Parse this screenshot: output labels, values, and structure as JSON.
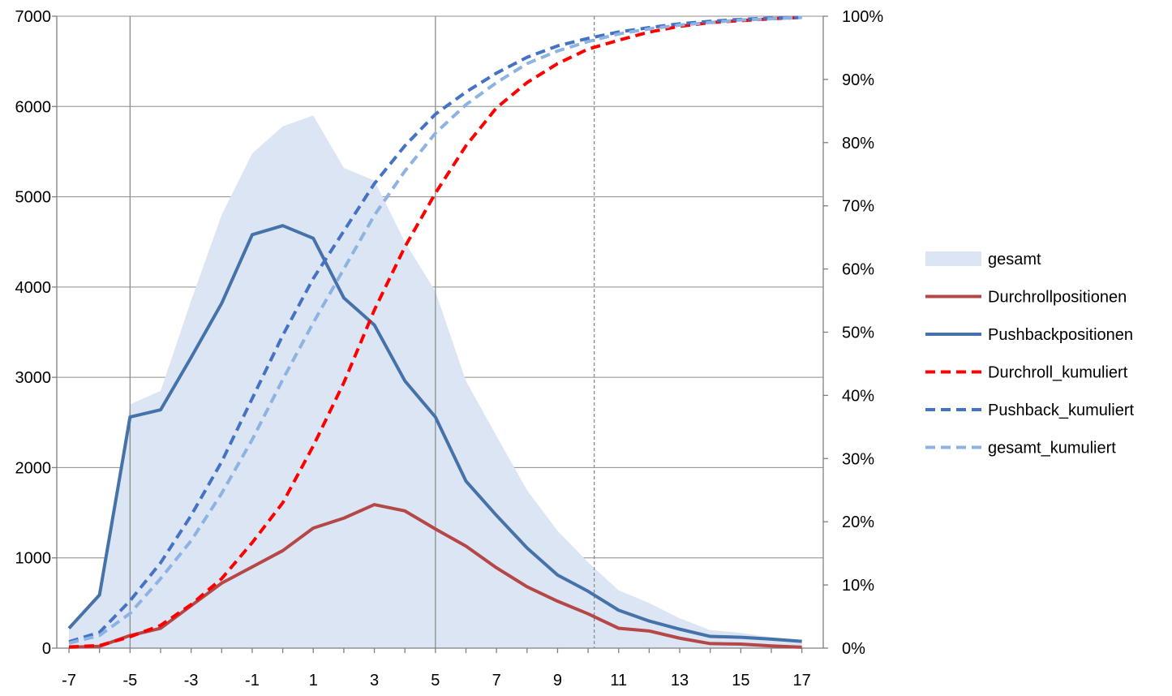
{
  "chart_data": {
    "type": "line",
    "x": [
      -7,
      -6,
      -5,
      -4,
      -3,
      -2,
      -1,
      0,
      1,
      2,
      3,
      4,
      5,
      6,
      7,
      8,
      9,
      10,
      11,
      12,
      13,
      14,
      15,
      16,
      17
    ],
    "x_ticks": [
      -7,
      -5,
      -3,
      -1,
      1,
      3,
      5,
      7,
      9,
      11,
      13,
      15,
      17
    ],
    "x_tick_labels": [
      "-7",
      "-5",
      "-3",
      "-1",
      "1",
      "3",
      "5",
      "7",
      "9",
      "11",
      "13",
      "15",
      "17"
    ],
    "y_left_lim": [
      0,
      7000
    ],
    "y_left_ticks": [
      0,
      1000,
      2000,
      3000,
      4000,
      5000,
      6000,
      7000
    ],
    "y_left_tick_labels": [
      "0",
      "1000",
      "2000",
      "3000",
      "4000",
      "5000",
      "6000",
      "7000"
    ],
    "y_right_lim": [
      0,
      1
    ],
    "y_right_ticks": [
      0,
      0.1,
      0.2,
      0.3,
      0.4,
      0.5,
      0.6,
      0.7,
      0.8,
      0.9,
      1.0
    ],
    "y_right_tick_labels": [
      "0%",
      "10%",
      "20%",
      "30%",
      "40%",
      "50%",
      "60%",
      "70%",
      "80%",
      "90%",
      "100%"
    ],
    "vertical_reference_lines": [
      {
        "x": -5,
        "style": "solid"
      },
      {
        "x": 5,
        "style": "solid"
      },
      {
        "x": 10.2,
        "style": "dashed"
      }
    ],
    "grid": "horizontal",
    "legend_position": "right",
    "series": [
      {
        "name": "gesamt",
        "kind": "area",
        "axis": "left",
        "color": "#dce5f3",
        "values": [
          240,
          580,
          2700,
          2850,
          3850,
          4800,
          5480,
          5780,
          5900,
          5320,
          5180,
          4500,
          3950,
          2960,
          2350,
          1750,
          1300,
          950,
          640,
          500,
          330,
          200,
          170,
          120,
          80
        ]
      },
      {
        "name": "Durchrollpositionen",
        "kind": "line",
        "axis": "left",
        "color": "#b64747",
        "values": [
          10,
          20,
          140,
          220,
          470,
          720,
          900,
          1080,
          1330,
          1440,
          1590,
          1520,
          1320,
          1130,
          890,
          680,
          520,
          380,
          220,
          190,
          110,
          50,
          45,
          25,
          10
        ]
      },
      {
        "name": "Pushbackpositionen",
        "kind": "line",
        "axis": "left",
        "color": "#4672aa",
        "values": [
          220,
          590,
          2560,
          2640,
          3220,
          3820,
          4580,
          4680,
          4540,
          3880,
          3580,
          2960,
          2560,
          1850,
          1470,
          1110,
          810,
          630,
          420,
          300,
          210,
          130,
          120,
          100,
          75
        ]
      },
      {
        "name": "Durchroll_kumuliert",
        "kind": "line",
        "axis": "right",
        "color": "#ff0000",
        "dashed": true,
        "values": [
          0.002,
          0.004,
          0.018,
          0.036,
          0.069,
          0.11,
          0.167,
          0.23,
          0.32,
          0.42,
          0.535,
          0.635,
          0.72,
          0.795,
          0.855,
          0.895,
          0.925,
          0.948,
          0.962,
          0.975,
          0.984,
          0.99,
          0.993,
          0.996,
          0.998
        ]
      },
      {
        "name": "Pushback_kumuliert",
        "kind": "line",
        "axis": "right",
        "color": "#4472c4",
        "dashed": true,
        "values": [
          0.01,
          0.025,
          0.075,
          0.135,
          0.21,
          0.295,
          0.395,
          0.495,
          0.585,
          0.66,
          0.735,
          0.795,
          0.845,
          0.88,
          0.91,
          0.935,
          0.953,
          0.965,
          0.975,
          0.982,
          0.988,
          0.992,
          0.995,
          0.997,
          0.998
        ]
      },
      {
        "name": "gesamt_kumuliert",
        "kind": "line",
        "axis": "right",
        "color": "#8db3e2",
        "dashed": true,
        "values": [
          0.008,
          0.02,
          0.055,
          0.11,
          0.17,
          0.245,
          0.33,
          0.425,
          0.515,
          0.6,
          0.685,
          0.755,
          0.815,
          0.86,
          0.895,
          0.925,
          0.945,
          0.96,
          0.972,
          0.98,
          0.986,
          0.99,
          0.994,
          0.996,
          0.998
        ]
      }
    ]
  }
}
